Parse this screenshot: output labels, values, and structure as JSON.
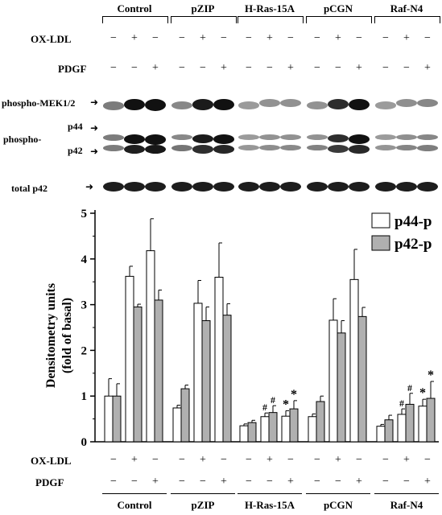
{
  "groups": [
    "Control",
    "pZIP",
    "H-Ras-15A",
    "pCGN",
    "Raf-N4"
  ],
  "treatments": {
    "oxldl_label": "OX-LDL",
    "pdgf_label": "PDGF",
    "oxldl_signs": [
      "−",
      "+",
      "−"
    ],
    "pdgf_signs": [
      "−",
      "−",
      "+"
    ]
  },
  "blot": {
    "label_mek": "phospho-MEK1/2",
    "label_phospho": "phospho-",
    "label_p44": "p44",
    "label_p42": "p42",
    "label_total": "total  p42"
  },
  "chart_data": {
    "type": "bar",
    "ylabel": "Densitometry units\n(fold of basal)",
    "ylim": [
      0,
      5
    ],
    "yticks": [
      "0",
      "1",
      "2",
      "3",
      "4",
      "5"
    ],
    "categories": [
      "Control basal",
      "Control OX-LDL",
      "Control PDGF",
      "pZIP basal",
      "pZIP OX-LDL",
      "pZIP PDGF",
      "H-Ras-15A basal",
      "H-Ras-15A OX-LDL",
      "H-Ras-15A PDGF",
      "pCGN basal",
      "pCGN OX-LDL",
      "pCGN PDGF",
      "Raf-N4 basal",
      "Raf-N4 OX-LDL",
      "Raf-N4 PDGF"
    ],
    "series": [
      {
        "name": "p44-p",
        "color": "#ffffff",
        "values": [
          1.0,
          3.62,
          4.18,
          0.74,
          3.03,
          3.6,
          0.35,
          0.55,
          0.56,
          0.55,
          2.66,
          3.55,
          0.34,
          0.6,
          0.78
        ],
        "errors": [
          0.38,
          0.22,
          0.7,
          0.06,
          0.5,
          0.75,
          0.04,
          0.08,
          0.12,
          0.06,
          0.47,
          0.66,
          0.04,
          0.12,
          0.15
        ],
        "marks": [
          "",
          "",
          "",
          "",
          "",
          "",
          "",
          "#",
          "*",
          "",
          "",
          "",
          "",
          "#",
          "*"
        ]
      },
      {
        "name": "p42-p",
        "color": "#b0b0b0",
        "values": [
          1.0,
          2.95,
          3.1,
          1.16,
          2.65,
          2.77,
          0.42,
          0.64,
          0.72,
          0.88,
          2.38,
          2.74,
          0.48,
          0.82,
          0.95
        ],
        "errors": [
          0.27,
          0.06,
          0.22,
          0.08,
          0.3,
          0.25,
          0.05,
          0.15,
          0.18,
          0.12,
          0.27,
          0.2,
          0.1,
          0.24,
          0.37
        ],
        "marks": [
          "",
          "",
          "",
          "",
          "",
          "",
          "",
          "#",
          "*",
          "",
          "",
          "",
          "",
          "#",
          "*"
        ]
      }
    ],
    "legend_position": "top-right"
  }
}
